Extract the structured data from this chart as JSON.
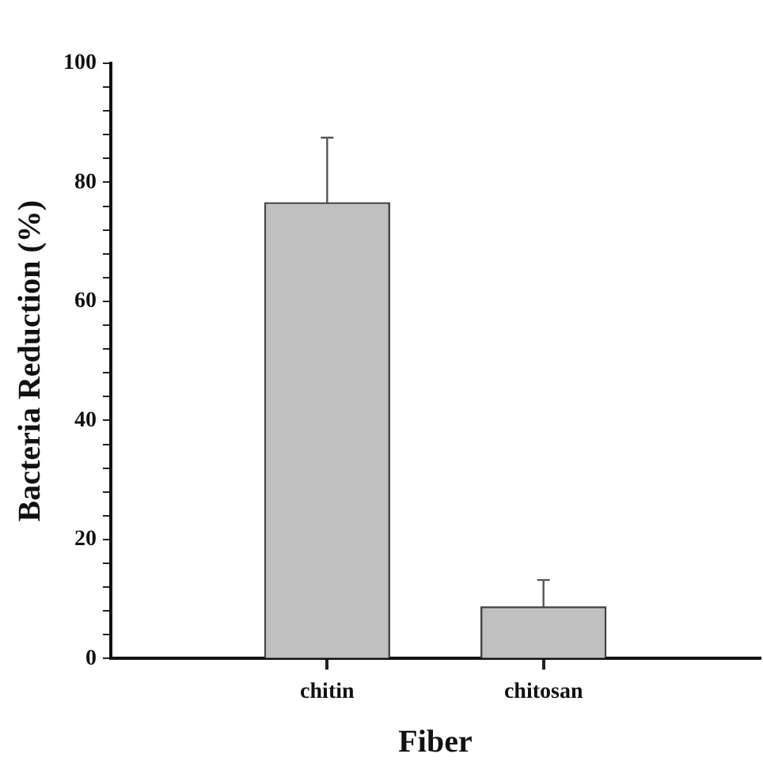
{
  "chart_data": {
    "type": "bar",
    "xlabel": "Fiber",
    "ylabel": "Bacteria Reduction (%)",
    "categories": [
      "chitin",
      "chitosan"
    ],
    "values": [
      76.6,
      8.7
    ],
    "errors": [
      [
        76.6,
        87.5
      ],
      [
        8.7,
        13.2
      ]
    ],
    "color": "#c0c0c0",
    "ylim": [
      0,
      100
    ],
    "yticks": [
      0,
      {
        "value": 4,
        "label": null
      },
      {
        "value": 8,
        "label": null
      },
      {
        "value": 12,
        "label": null
      },
      {
        "value": 16,
        "label": null
      },
      20,
      {
        "value": 24,
        "label": null
      },
      {
        "value": 28,
        "label": null
      },
      {
        "value": 32,
        "label": null
      },
      {
        "value": 36,
        "label": null
      },
      40,
      {
        "value": 44,
        "label": null
      },
      {
        "value": 48,
        "label": null
      },
      {
        "value": 52,
        "label": null
      },
      {
        "value": 56,
        "label": null
      },
      60,
      {
        "value": 64,
        "label": null
      },
      {
        "value": 68,
        "label": null
      },
      {
        "value": 72,
        "label": null
      },
      {
        "value": 76,
        "label": null
      },
      80,
      {
        "value": 84,
        "label": null
      },
      {
        "value": 88,
        "label": null
      },
      {
        "value": 92,
        "label": null
      },
      {
        "value": 96,
        "label": null
      },
      100
    ],
    "grid": false,
    "legend": false
  }
}
